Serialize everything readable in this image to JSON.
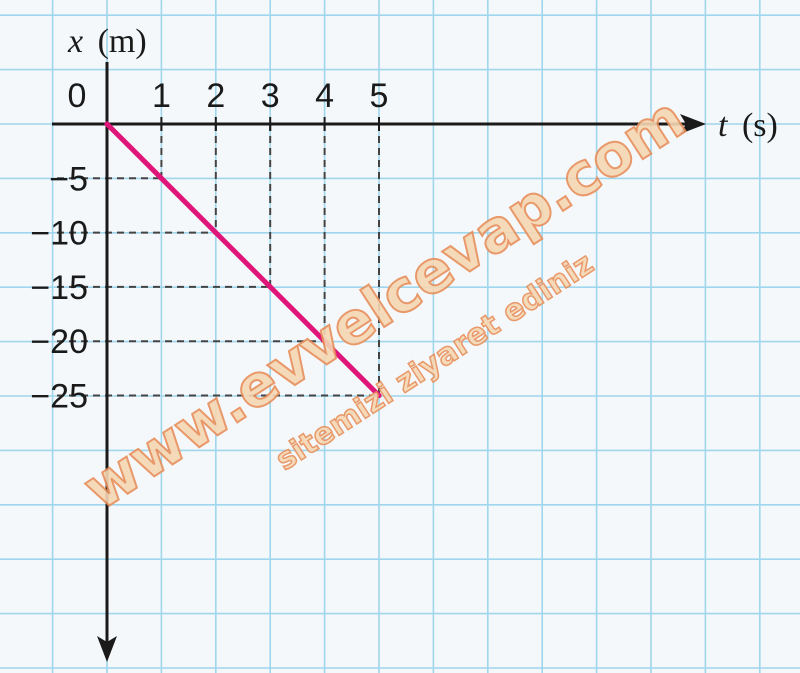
{
  "chart_data": {
    "type": "line",
    "xlabel_var": "t",
    "xlabel_unit": "(s)",
    "ylabel_var": "x",
    "ylabel_unit": "(m)",
    "origin_label": "0",
    "x_ticks": [
      1,
      2,
      3,
      4,
      5
    ],
    "y_ticks": [
      -5,
      -10,
      -15,
      -20,
      -25
    ],
    "y_tick_labels": [
      "−5",
      "−10",
      "−15",
      "−20",
      "−25"
    ],
    "xlim": [
      0,
      12.5
    ],
    "ylim": [
      -28.5,
      0
    ],
    "grid": true,
    "guide_lines": "dashed",
    "series": [
      {
        "x": [
          0,
          1,
          2,
          3,
          4,
          5
        ],
        "y": [
          0,
          -5,
          -10,
          -15,
          -20,
          -25
        ],
        "color": "#e0157a"
      }
    ]
  },
  "colors": {
    "grid": "#9fd6ec",
    "axis": "#1a1a1a",
    "dashed": "#444444",
    "line": "#e0157a",
    "watermark_fill": "#f6d7b3",
    "watermark_stroke": "#e88e5a"
  },
  "watermark": {
    "line1": "www.evvelcevap.com",
    "line2": "sitemizi ziyaret ediniz"
  }
}
